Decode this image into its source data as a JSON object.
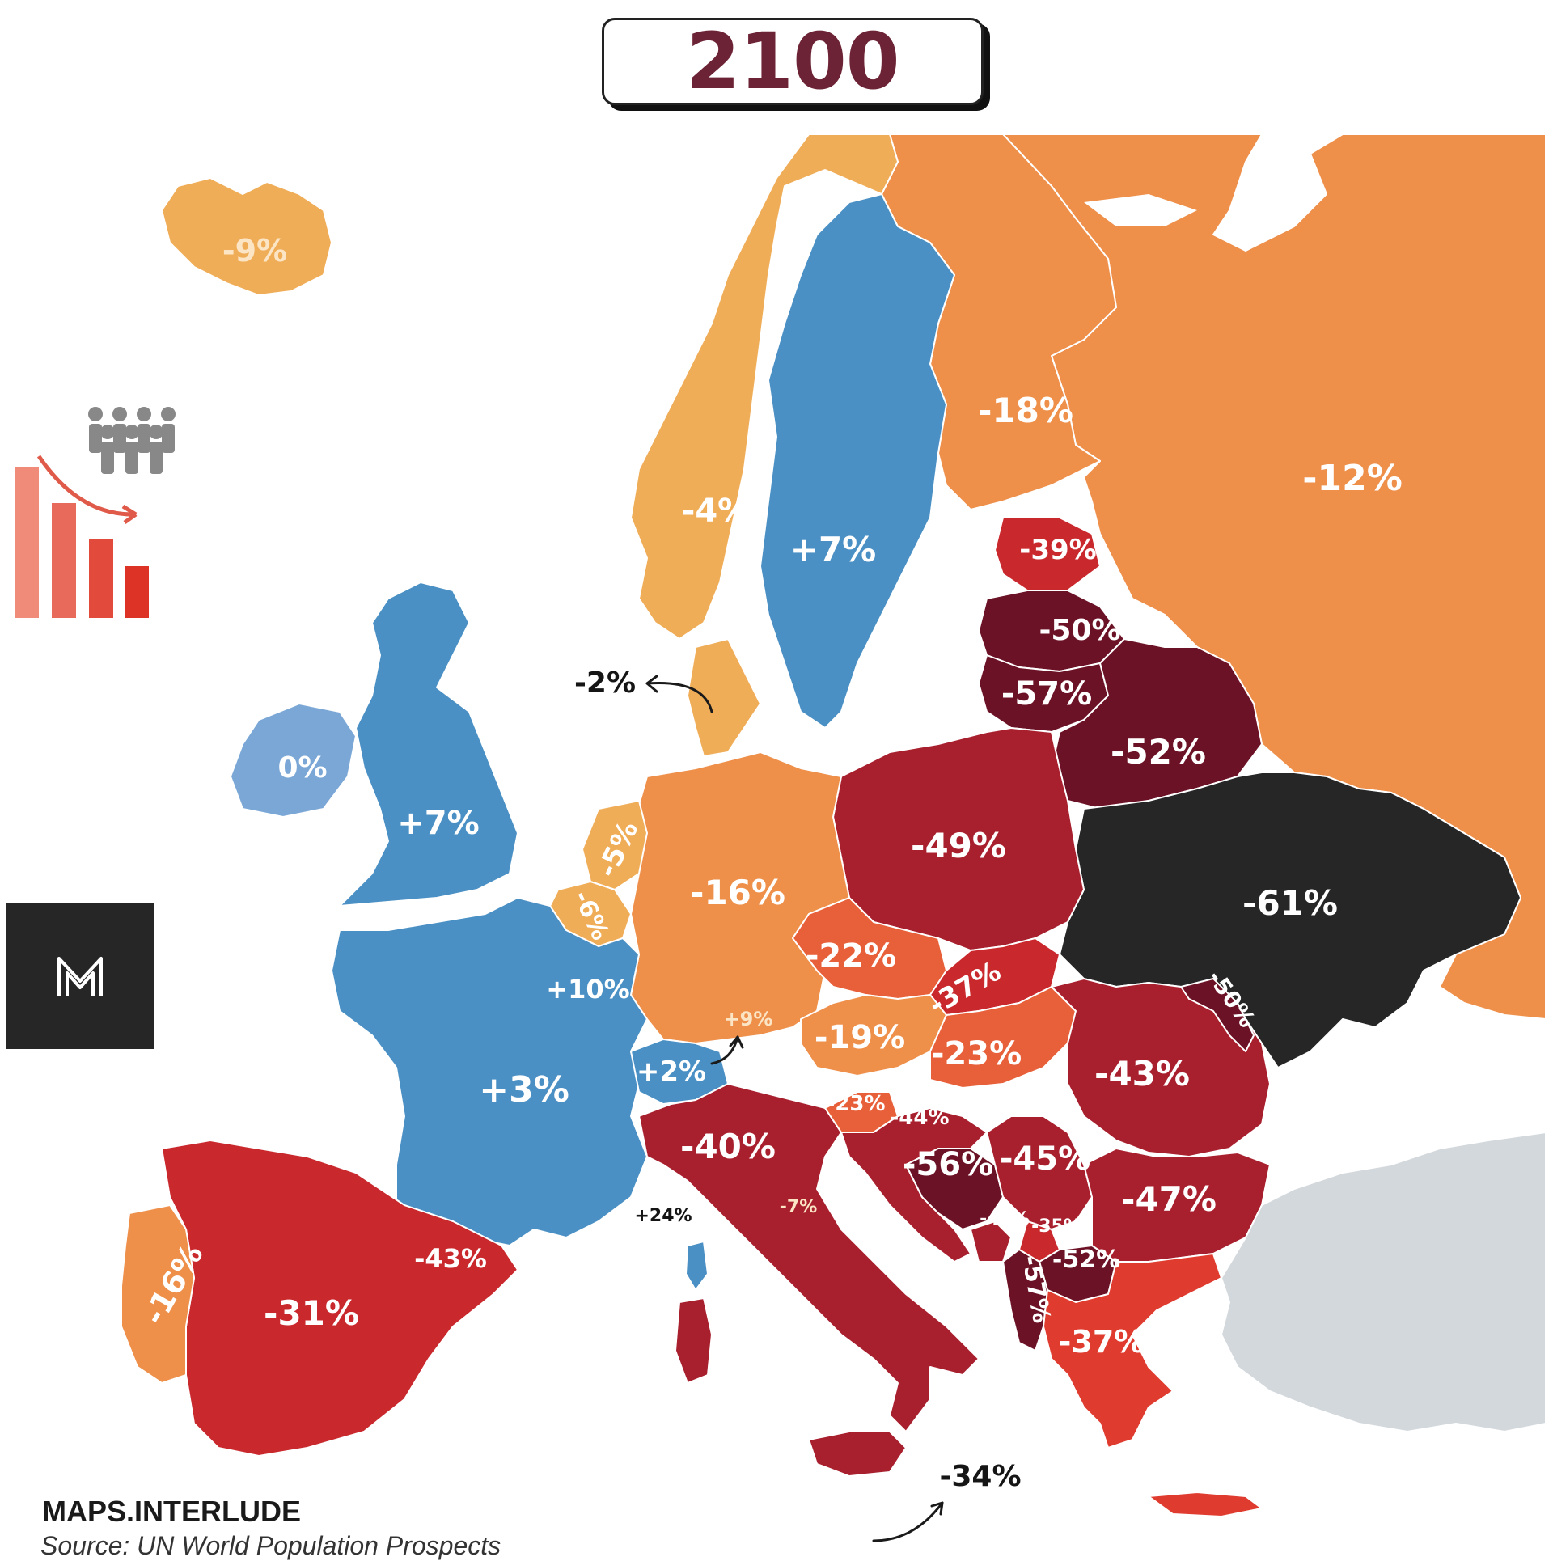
{
  "title": "2100",
  "brand": "MAPS.INTERLUDE",
  "source": "Source: UN World Population Prospects",
  "colors": {
    "growth_high": "#4a90c4",
    "growth_low": "#7aa7d6",
    "decline_slight": "#f0ad58",
    "decline_moderate": "#ee8f4a",
    "decline_high_orange": "#e8603a",
    "decline_high": "#c9282d",
    "decline_very_high": "#a81f2e",
    "decline_extreme": "#6c1226",
    "decline_max": "#262626",
    "no_data": "#d3d8dc"
  },
  "labels": [
    {
      "id": "iceland",
      "value": "-9%"
    },
    {
      "id": "norway",
      "value": "-4%"
    },
    {
      "id": "sweden",
      "value": "+7%"
    },
    {
      "id": "finland",
      "value": "-18%"
    },
    {
      "id": "russia",
      "value": "-12%"
    },
    {
      "id": "estonia",
      "value": "-39%"
    },
    {
      "id": "latvia",
      "value": "-50%"
    },
    {
      "id": "lithuania",
      "value": "-57%"
    },
    {
      "id": "belarus",
      "value": "-52%"
    },
    {
      "id": "denmark",
      "value": "-2%"
    },
    {
      "id": "ireland",
      "value": "0%"
    },
    {
      "id": "uk",
      "value": "+7%"
    },
    {
      "id": "netherlands",
      "value": "-5%"
    },
    {
      "id": "belgium",
      "value": "-6%"
    },
    {
      "id": "luxembourg",
      "value": "+10%"
    },
    {
      "id": "germany",
      "value": "-16%"
    },
    {
      "id": "poland",
      "value": "-49%"
    },
    {
      "id": "ukraine",
      "value": "-61%"
    },
    {
      "id": "czechia",
      "value": "-22%"
    },
    {
      "id": "slovakia",
      "value": "-37%"
    },
    {
      "id": "liechtenstein",
      "value": "+9%"
    },
    {
      "id": "austria",
      "value": "-19%"
    },
    {
      "id": "hungary",
      "value": "-23%"
    },
    {
      "id": "moldova",
      "value": "-50%"
    },
    {
      "id": "romania",
      "value": "-43%"
    },
    {
      "id": "switzerland",
      "value": "+2%"
    },
    {
      "id": "france",
      "value": "+3%"
    },
    {
      "id": "slovenia",
      "value": "-23%"
    },
    {
      "id": "croatia",
      "value": "-44%"
    },
    {
      "id": "italy",
      "value": "-40%"
    },
    {
      "id": "bosnia",
      "value": "-56%"
    },
    {
      "id": "serbia",
      "value": "-45%"
    },
    {
      "id": "bulgaria",
      "value": "-47%"
    },
    {
      "id": "monaco",
      "value": "+24%"
    },
    {
      "id": "san-marino",
      "value": "-7%"
    },
    {
      "id": "montenegro",
      "value": "-48%"
    },
    {
      "id": "kosovo",
      "value": "-35%"
    },
    {
      "id": "north-macedonia",
      "value": "-52%"
    },
    {
      "id": "albania",
      "value": "-57%"
    },
    {
      "id": "greece",
      "value": "-37%"
    },
    {
      "id": "andorra",
      "value": "-43%"
    },
    {
      "id": "portugal",
      "value": "-16%"
    },
    {
      "id": "spain",
      "value": "-31%"
    },
    {
      "id": "malta",
      "value": "-34%"
    }
  ]
}
